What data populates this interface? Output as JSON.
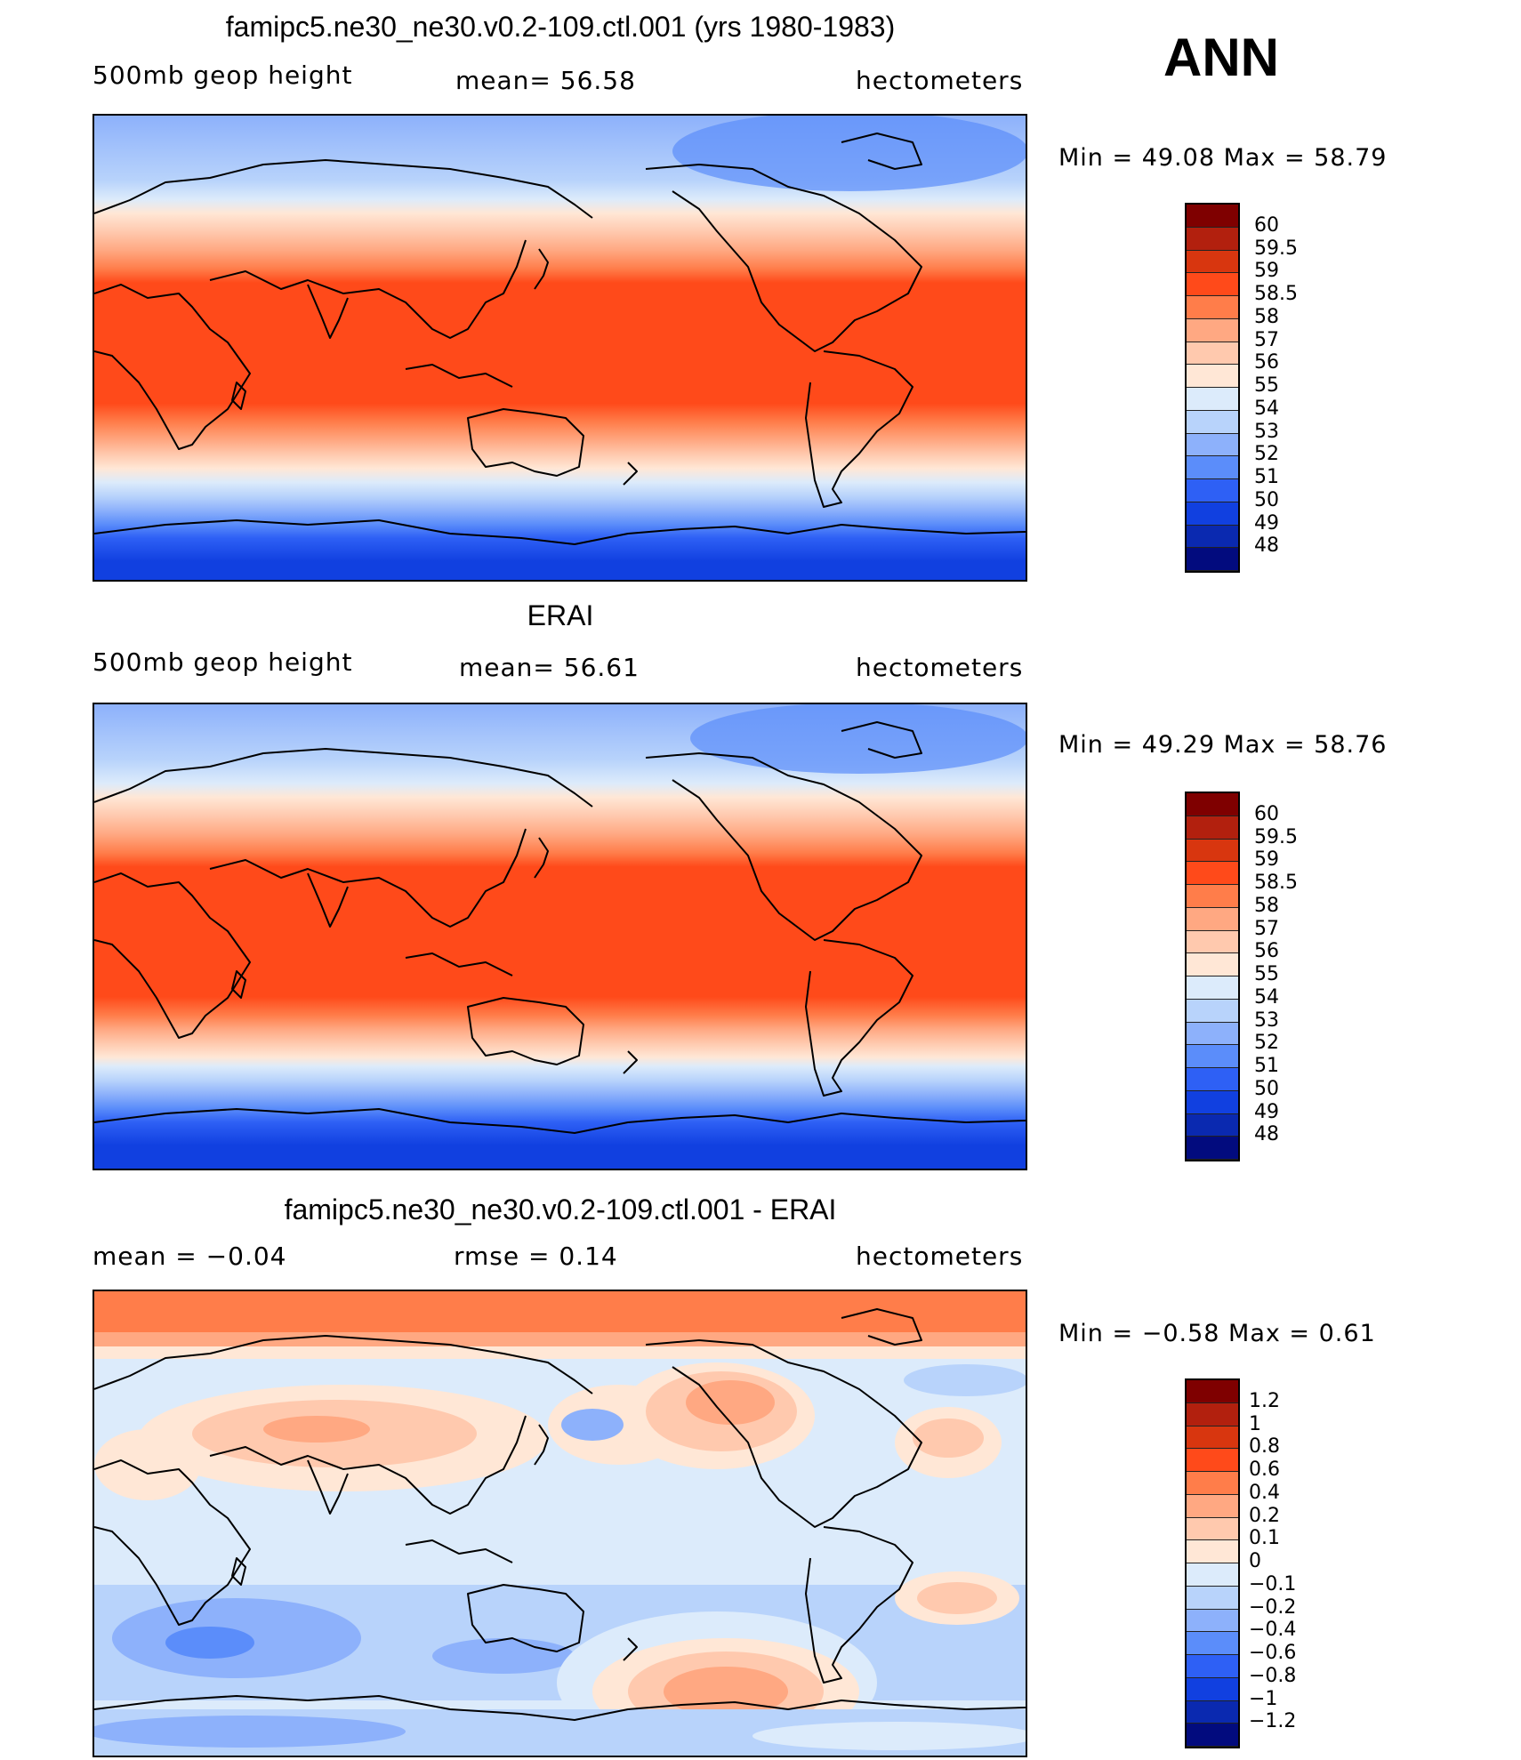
{
  "header": {
    "ann": "ANN"
  },
  "panels": [
    {
      "id": "model",
      "title": "famipc5.ne30_ne30.v0.2-109.ctl.001 (yrs 1980-1983)",
      "left_label": "500mb  geop  height",
      "center_label": "mean=   56.58",
      "units": "hectometers",
      "minmax": "Min  =   49.08  Max  =   58.79",
      "colors": [
        "#7f0000",
        "#b2200e",
        "#d8360f",
        "#ff4a1a",
        "#ff7d4a",
        "#ffa882",
        "#ffc9ae",
        "#ffe7d6",
        "#dcebfb",
        "#b8d3fb",
        "#8db1fb",
        "#5b8dfa",
        "#2e60f5",
        "#1140e0",
        "#0a29b0",
        "#020b7e"
      ],
      "ticks": [
        "60",
        "59.5",
        "59",
        "58.5",
        "58",
        "57",
        "56",
        "55",
        "54",
        "53",
        "52",
        "51",
        "50",
        "49",
        "48"
      ]
    },
    {
      "id": "obs",
      "title": "ERAI",
      "left_label": "500mb  geop  height",
      "center_label": "mean=   56.61",
      "units": "hectometers",
      "minmax": "Min  =   49.29  Max  =   58.76",
      "colors": [
        "#7f0000",
        "#b2200e",
        "#d8360f",
        "#ff4a1a",
        "#ff7d4a",
        "#ffa882",
        "#ffc9ae",
        "#ffe7d6",
        "#dcebfb",
        "#b8d3fb",
        "#8db1fb",
        "#5b8dfa",
        "#2e60f5",
        "#1140e0",
        "#0a29b0",
        "#020b7e"
      ],
      "ticks": [
        "60",
        "59.5",
        "59",
        "58.5",
        "58",
        "57",
        "56",
        "55",
        "54",
        "53",
        "52",
        "51",
        "50",
        "49",
        "48"
      ]
    },
    {
      "id": "diff",
      "title": "famipc5.ne30_ne30.v0.2-109.ctl.001 - ERAI",
      "left_label": "mean  =    −0.04",
      "center_label": "rmse  =     0.14",
      "units": "hectometers",
      "minmax": "Min  =   −0.58  Max  =     0.61",
      "colors": [
        "#7f0000",
        "#b2200e",
        "#d8360f",
        "#ff4a1a",
        "#ff7d4a",
        "#ffa882",
        "#ffc9ae",
        "#ffe7d6",
        "#dcebfb",
        "#b8d3fb",
        "#8db1fb",
        "#5b8dfa",
        "#2e60f5",
        "#1140e0",
        "#0a29b0",
        "#020b7e"
      ],
      "ticks": [
        "1.2",
        "1",
        "0.8",
        "0.6",
        "0.4",
        "0.2",
        "0.1",
        "0",
        "−0.1",
        "−0.2",
        "−0.4",
        "−0.6",
        "−0.8",
        "−1",
        "−1.2"
      ]
    }
  ]
}
